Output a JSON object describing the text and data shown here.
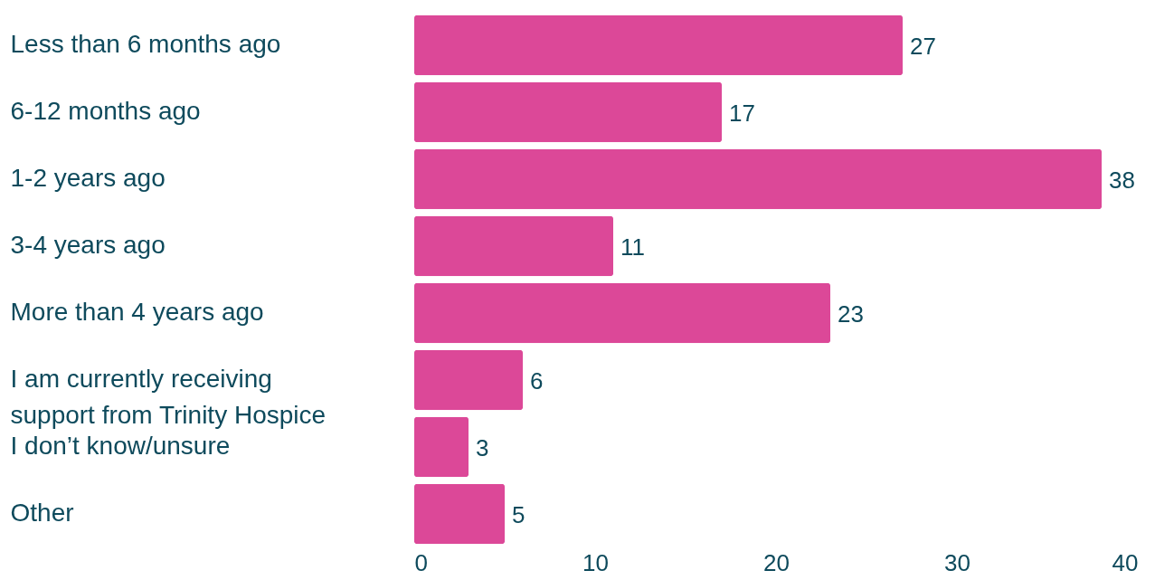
{
  "chart_data": {
    "type": "bar",
    "orientation": "horizontal",
    "categories": [
      "Less than 6 months ago",
      "6-12 months ago",
      "1-2 years ago",
      "3-4 years ago",
      "More than 4 years ago",
      "I am currently receiving support from Trinity Hospice",
      "I don’t know/unsure",
      "Other"
    ],
    "values": [
      27,
      17,
      38,
      11,
      23,
      6,
      3,
      5
    ],
    "color": "#dc4898",
    "xlim": [
      0,
      40
    ],
    "xticks": [
      0,
      10,
      20,
      30,
      40
    ],
    "data_labels": true,
    "grid": false
  }
}
